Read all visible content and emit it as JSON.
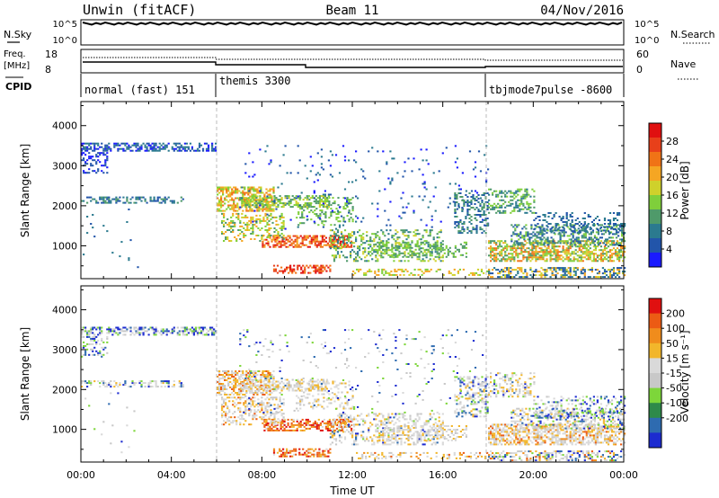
{
  "header": {
    "station": "Unwin  (fitACF)",
    "beam": "Beam 11",
    "date": "04/Nov/2016"
  },
  "panels": {
    "nsky_label": "N.Sky",
    "nsearch_label": "N.Search",
    "freq_label_line1": "Freq.",
    "freq_label_line2": "[MHz]",
    "nave_label": "Nave",
    "cpid_label": "CPID",
    "nsky_ticks": [
      "10^5",
      "10^0"
    ],
    "nsearch_ticks": [
      "10^5",
      "10^0"
    ],
    "freq_ticks": [
      "18",
      "8"
    ],
    "nave_ticks": [
      "60",
      "0"
    ]
  },
  "cpid_segments": [
    {
      "name": "normal (fast) 151",
      "start_hour": 0
    },
    {
      "name": "themis 3300",
      "start_hour": 6
    },
    {
      "name": "tbjmode7pulse -8600",
      "start_hour": 18
    }
  ],
  "chart_data": [
    {
      "type": "heatmap",
      "parameter": "Power",
      "xlabel": "",
      "ylabel": "Slant Range [km]",
      "xlim": [
        0,
        24
      ],
      "ylim": [
        180,
        4600
      ],
      "y_ticks": [
        "1000",
        "2000",
        "3000",
        "4000"
      ],
      "colorbar": {
        "label": "Power [dB]",
        "ticks": [
          "4",
          "8",
          "12",
          "16",
          "20",
          "24",
          "28"
        ],
        "colors": [
          "#1a1aff",
          "#2255aa",
          "#2b7a8f",
          "#4f9a6a",
          "#7fcf3b",
          "#cfd12b",
          "#f5a623",
          "#f07316",
          "#e8401a",
          "#e01010"
        ]
      }
    },
    {
      "type": "heatmap",
      "parameter": "Velocity",
      "xlabel": "Time UT",
      "ylabel": "Slant Range [km]",
      "xlim": [
        0,
        24
      ],
      "ylim": [
        180,
        4600
      ],
      "x_ticks": [
        "00:00",
        "04:00",
        "08:00",
        "12:00",
        "16:00",
        "20:00",
        "00:00"
      ],
      "y_ticks": [
        "1000",
        "2000",
        "3000",
        "4000"
      ],
      "colorbar": {
        "label": "Velocity [m s⁻¹]",
        "ticks": [
          "200",
          "100",
          "50",
          "15",
          "-15",
          "-50",
          "-100",
          "-200"
        ],
        "colors": [
          "#1c2bd0",
          "#2e6bb0",
          "#2e8a4a",
          "#7dd63a",
          "#c8c8c8",
          "#d9d9d9",
          "#f2b62b",
          "#f08c1c",
          "#ec5b14",
          "#e01010"
        ]
      }
    }
  ]
}
